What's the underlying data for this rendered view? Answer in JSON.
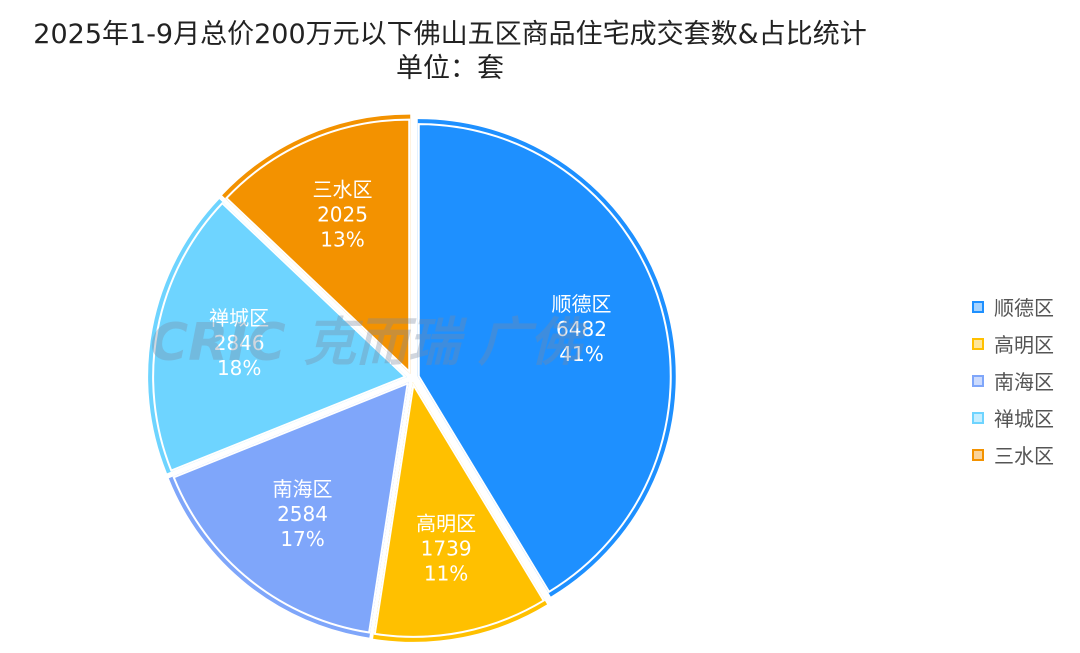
{
  "chart_data": {
    "type": "pie",
    "title": "2025年1-9月总价200万元以下佛山五区商品住宅成交套数&占比统计",
    "subtitle": "单位：套",
    "legend_position": "right",
    "watermark": "CRIC 克而瑞 广佛",
    "slices": [
      {
        "name": "顺德区",
        "value": 6482,
        "percent": "41%",
        "color": "#1E90FF"
      },
      {
        "name": "高明区",
        "value": 1739,
        "percent": "11%",
        "color": "#FFC000"
      },
      {
        "name": "南海区",
        "value": 2584,
        "percent": "17%",
        "color": "#7FA6FA"
      },
      {
        "name": "禅城区",
        "value": 2846,
        "percent": "18%",
        "color": "#6ED4FF"
      },
      {
        "name": "三水区",
        "value": 2025,
        "percent": "13%",
        "color": "#F39200"
      }
    ]
  }
}
